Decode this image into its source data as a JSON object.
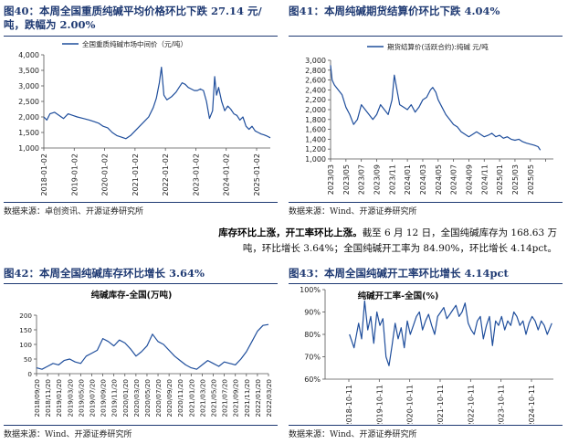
{
  "fig40": {
    "title_line1": "图40：本周全国重质纯碱平均价格环比下跌 27.14 元/",
    "title_line2": "吨，跌幅为 2.00%",
    "source": "数据来源：卓创资讯、开源证券研究所"
  },
  "fig41": {
    "title": "图41：本周纯碱期货结算价环比下跌 4.04%",
    "source": "数据来源：Wind、开源证券研究所"
  },
  "paragraph": {
    "bold": "库存环比上涨，开工率环比上涨。",
    "line1": "截至 6 月 12 日，全国纯碱库存为 168.63 万",
    "line2": "吨，环比增长 3.64%；全国纯碱开工率为 84.90%，环比增长 4.14pct。"
  },
  "fig42": {
    "title": "图42：本周全国纯碱库存环比增长 3.64%",
    "source": "数据来源：Wind、开源证券研究所"
  },
  "fig43": {
    "title": "图43：本周全国纯碱开工率环比增长 4.14pct",
    "source": "数据来源：Wind、开源证券研究所"
  },
  "chart_data": [
    {
      "type": "line",
      "legend": "全国重质纯碱市场中间价（元/吨）",
      "color": "#1f4e9c",
      "ylim": [
        1000,
        4000
      ],
      "yticks": [
        1000,
        1500,
        2000,
        2500,
        3000,
        3500,
        4000
      ],
      "ytick_labels": [
        "1,000",
        "1,500",
        "2,000",
        "2,500",
        "3,000",
        "3,500",
        "4,000"
      ],
      "xlim": [
        2018.0,
        2025.45
      ],
      "xticks": [
        2018.0,
        2019.0,
        2020.0,
        2021.0,
        2022.0,
        2023.0,
        2024.0,
        2025.0
      ],
      "xtick_labels": [
        "2018-01-02",
        "2019-01-02",
        "2020-01-02",
        "2021-01-02",
        "2022-01-02",
        "2023-01-02",
        "2024-01-02",
        "2025-01-02"
      ],
      "x": [
        2018.0,
        2018.1,
        2018.2,
        2018.35,
        2018.5,
        2018.65,
        2018.8,
        2018.95,
        2019.1,
        2019.3,
        2019.5,
        2019.65,
        2019.8,
        2019.95,
        2020.1,
        2020.25,
        2020.4,
        2020.55,
        2020.7,
        2020.85,
        2021.0,
        2021.15,
        2021.3,
        2021.45,
        2021.6,
        2021.7,
        2021.8,
        2021.87,
        2021.95,
        2022.05,
        2022.2,
        2022.35,
        2022.45,
        2022.55,
        2022.65,
        2022.75,
        2022.85,
        2022.95,
        2023.05,
        2023.15,
        2023.25,
        2023.35,
        2023.45,
        2023.55,
        2023.62,
        2023.68,
        2023.75,
        2023.85,
        2023.95,
        2024.05,
        2024.15,
        2024.25,
        2024.35,
        2024.45,
        2024.55,
        2024.65,
        2024.75,
        2024.85,
        2024.95,
        2025.05,
        2025.15,
        2025.25,
        2025.35,
        2025.45
      ],
      "y": [
        2000,
        1900,
        2100,
        2150,
        2050,
        1950,
        2100,
        2050,
        2000,
        1950,
        1900,
        1850,
        1800,
        1700,
        1650,
        1500,
        1400,
        1350,
        1300,
        1400,
        1550,
        1700,
        1850,
        2000,
        2300,
        2600,
        3100,
        3600,
        2700,
        2550,
        2650,
        2800,
        2950,
        3100,
        3050,
        2950,
        2900,
        2850,
        2850,
        2900,
        2850,
        2500,
        1950,
        2200,
        3300,
        2700,
        2950,
        2500,
        2200,
        2350,
        2250,
        2100,
        2050,
        1900,
        2000,
        1700,
        1600,
        1700,
        1550,
        1500,
        1450,
        1420,
        1380,
        1330
      ]
    },
    {
      "type": "line",
      "legend": "期货结算价(活跃合约):纯碱 元/吨",
      "color": "#1f4e9c",
      "ylim": [
        1000,
        3000
      ],
      "yticks": [
        1000,
        1200,
        1400,
        1600,
        1800,
        2000,
        2200,
        2400,
        2600,
        2800,
        3000
      ],
      "ytick_labels": [
        "1,000",
        "1,200",
        "1,400",
        "1,600",
        "1,800",
        "2,000",
        "2,200",
        "2,400",
        "2,600",
        "2,800",
        "3,000"
      ],
      "xlim": [
        0,
        29
      ],
      "xticks": [
        0,
        2,
        4,
        6,
        8,
        10,
        12,
        14,
        16,
        18,
        20,
        22,
        24,
        26,
        28
      ],
      "xtick_labels": [
        "2023/03",
        "2023/05",
        "2023/07",
        "2023/09",
        "2023/11",
        "2024/01",
        "2024/03",
        "2024/05",
        "2024/07",
        "2024/09",
        "2024/11",
        "2025/01",
        "2025/03",
        "2025/05",
        ""
      ],
      "x": [
        0,
        0.2,
        0.5,
        1,
        1.5,
        2,
        2.5,
        3,
        3.5,
        4,
        4.5,
        5,
        5.5,
        6,
        6.5,
        7,
        7.5,
        8,
        8.3,
        8.7,
        9,
        9.5,
        10,
        10.5,
        11,
        11.5,
        12,
        12.5,
        13,
        13.3,
        13.7,
        14,
        14.5,
        15,
        15.5,
        16,
        16.5,
        17,
        17.5,
        18,
        18.5,
        19,
        19.5,
        20,
        20.5,
        21,
        21.5,
        22,
        22.5,
        23,
        23.5,
        24,
        24.5,
        25,
        25.5,
        26,
        26.5,
        27,
        27.3
      ],
      "y": [
        2900,
        2600,
        2500,
        2400,
        2300,
        2050,
        1900,
        1700,
        1800,
        2100,
        2000,
        1900,
        1800,
        1900,
        2100,
        2000,
        1900,
        2200,
        2700,
        2350,
        2100,
        2050,
        2000,
        2100,
        1950,
        2050,
        2200,
        2250,
        2400,
        2450,
        2350,
        2200,
        2050,
        1900,
        1800,
        1700,
        1650,
        1550,
        1500,
        1450,
        1500,
        1550,
        1500,
        1450,
        1480,
        1520,
        1450,
        1480,
        1420,
        1450,
        1400,
        1380,
        1400,
        1350,
        1320,
        1300,
        1280,
        1250,
        1180
      ]
    },
    {
      "type": "line",
      "title": "纯碱库存-全国(万吨)",
      "color": "#1f4e9c",
      "ylim": [
        0,
        200
      ],
      "yticks": [
        0,
        50,
        100,
        150,
        200
      ],
      "ytick_labels": [
        "0",
        "50",
        "100",
        "150",
        "200"
      ],
      "xlim": [
        0,
        42
      ],
      "xticks": [
        0,
        2,
        4,
        6,
        8,
        10,
        12,
        14,
        16,
        18,
        20,
        22,
        24,
        26,
        28,
        30,
        32,
        34,
        36,
        38,
        40,
        42
      ],
      "xtick_labels": [
        "2018/09/20",
        "2018/11/20",
        "2019/01/20",
        "2019/03/20",
        "2019/05/20",
        "2019/07/20",
        "2019/09/20",
        "2019/11/20",
        "2020/01/20",
        "2020/03/20",
        "2020/05/20",
        "2020/07/20",
        "2020/09/20",
        "2020/11/20",
        "2021/01/20",
        "2021/03/20",
        "2021/05/20",
        "2021/07/20",
        "2021/09/20",
        "2021/11/20",
        "2022/01/20",
        "2022/03/20"
      ],
      "x": [
        0,
        1,
        2,
        3,
        4,
        5,
        6,
        7,
        8,
        9,
        10,
        11,
        12,
        13,
        14,
        15,
        16,
        17,
        18,
        19,
        20,
        21,
        22,
        23,
        24,
        25,
        26,
        27,
        28,
        29,
        30,
        31,
        32,
        33,
        34,
        35,
        36,
        37,
        38,
        39,
        40,
        41,
        42
      ],
      "y": [
        20,
        15,
        25,
        35,
        30,
        45,
        50,
        40,
        35,
        60,
        70,
        80,
        120,
        110,
        95,
        115,
        105,
        85,
        60,
        75,
        95,
        135,
        110,
        100,
        80,
        60,
        45,
        30,
        20,
        15,
        30,
        45,
        35,
        25,
        40,
        35,
        30,
        50,
        75,
        110,
        145,
        165,
        168
      ]
    },
    {
      "type": "line",
      "title": "纯碱开工率-全国(%)",
      "color": "#1f4e9c",
      "ylim": [
        60,
        100
      ],
      "yticks": [
        60,
        70,
        80,
        90,
        100
      ],
      "ytick_labels": [
        "60%",
        "70%",
        "80%",
        "90%",
        "100%"
      ],
      "xlim": [
        2018.0,
        2025.5
      ],
      "xticks": [
        2018.78,
        2019.78,
        2020.78,
        2021.78,
        2022.78,
        2023.78,
        2024.78
      ],
      "xtick_labels": [
        "2018-10-11",
        "2019-10-11",
        "2020-10-11",
        "2021-10-11",
        "2022-10-11",
        "2023-10-11",
        "2024-10-11"
      ],
      "x": [
        2018.8,
        2018.95,
        2019.1,
        2019.2,
        2019.3,
        2019.4,
        2019.5,
        2019.6,
        2019.7,
        2019.8,
        2019.9,
        2020.0,
        2020.1,
        2020.2,
        2020.3,
        2020.4,
        2020.5,
        2020.6,
        2020.7,
        2020.8,
        2020.9,
        2021.0,
        2021.1,
        2021.2,
        2021.3,
        2021.4,
        2021.5,
        2021.6,
        2021.7,
        2021.8,
        2021.9,
        2022.0,
        2022.1,
        2022.2,
        2022.3,
        2022.4,
        2022.5,
        2022.6,
        2022.7,
        2022.8,
        2022.9,
        2023.0,
        2023.1,
        2023.2,
        2023.3,
        2023.4,
        2023.5,
        2023.6,
        2023.7,
        2023.8,
        2023.9,
        2024.0,
        2024.1,
        2024.2,
        2024.3,
        2024.4,
        2024.5,
        2024.6,
        2024.7,
        2024.8,
        2024.9,
        2025.0,
        2025.1,
        2025.2,
        2025.3,
        2025.45
      ],
      "y": [
        80,
        74,
        85,
        78,
        95,
        82,
        88,
        76,
        90,
        84,
        87,
        70,
        66,
        75,
        85,
        78,
        83,
        74,
        86,
        80,
        84,
        88,
        90,
        82,
        86,
        89,
        84,
        80,
        88,
        90,
        92,
        87,
        89,
        91,
        93,
        88,
        90,
        94,
        85,
        82,
        80,
        86,
        88,
        78,
        84,
        88,
        75,
        86,
        84,
        88,
        82,
        86,
        84,
        90,
        88,
        84,
        86,
        80,
        85,
        88,
        86,
        82,
        86,
        84,
        80,
        85
      ]
    }
  ]
}
